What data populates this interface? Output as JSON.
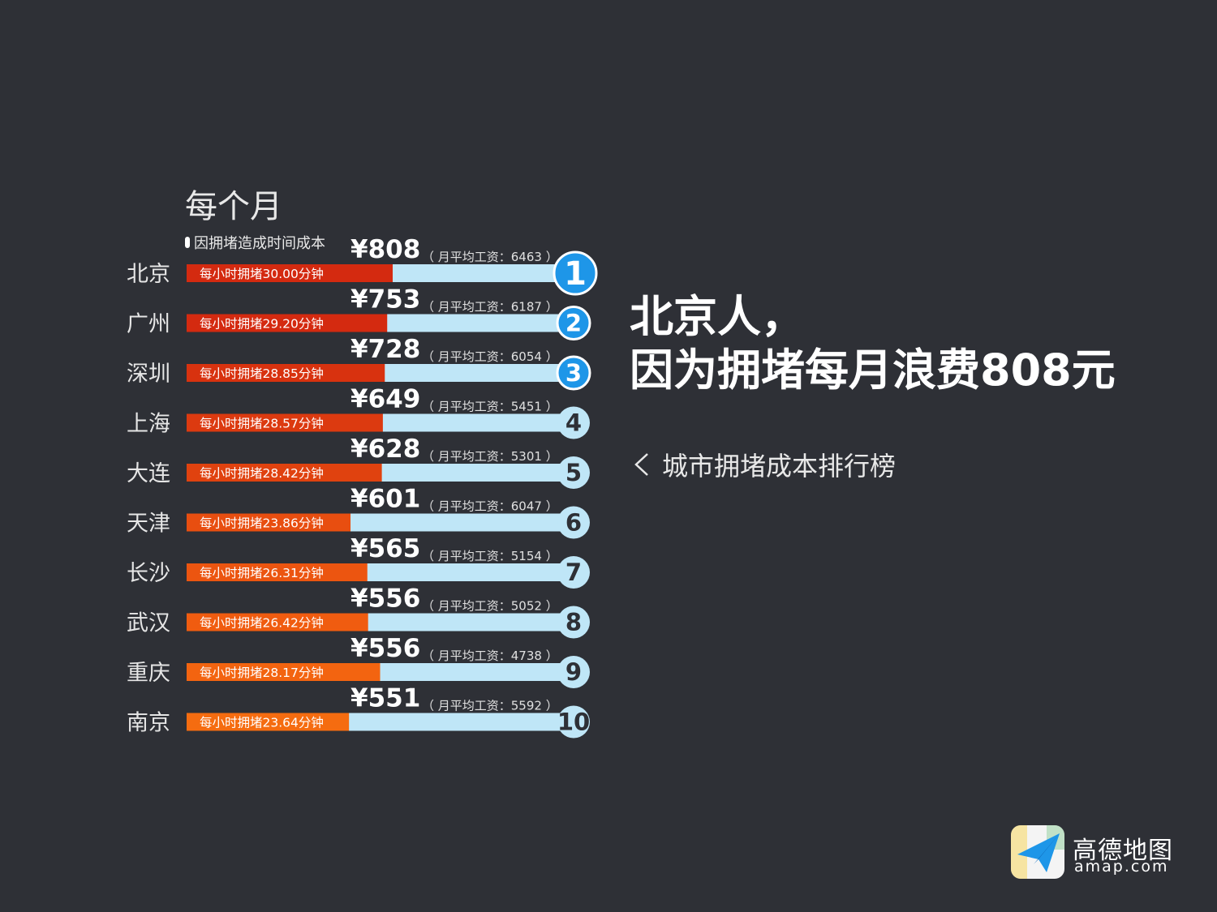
{
  "heading": "每个月",
  "legend_label": "因拥堵造成时间成本",
  "headline_line1": "北京人，",
  "headline_line2": "因为拥堵每月浪费808元",
  "subtitle": "城市拥堵成本排行榜",
  "brand": {
    "name": "高德地图",
    "url": "amap.com"
  },
  "colors": {
    "background": "#2e3036",
    "track": "#bfe6f7",
    "rank_top3": "#1e96e8",
    "rank_other": "#bfe6f7"
  },
  "chart_data": {
    "type": "bar",
    "categories": [
      "北京",
      "广州",
      "深圳",
      "上海",
      "大连",
      "天津",
      "长沙",
      "武汉",
      "重庆",
      "南京"
    ],
    "series": [
      {
        "name": "因拥堵造成时间成本",
        "values": [
          808,
          753,
          728,
          649,
          628,
          601,
          565,
          556,
          556,
          551
        ],
        "labels": [
          "¥808",
          "¥753",
          "¥728",
          "¥649",
          "¥628",
          "¥601",
          "¥565",
          "¥556",
          "¥556",
          "¥551"
        ]
      }
    ],
    "salary_labels": [
      "（ 月平均工资：6463 ）",
      "（ 月平均工资：6187 ）",
      "（ 月平均工资：6054 ）",
      "（ 月平均工资：5451 ）",
      "（ 月平均工资：5301 ）",
      "（ 月平均工资：6047 ）",
      "（ 月平均工资：5154 ）",
      "（ 月平均工资：5052 ）",
      "（ 月平均工资：4738 ）",
      "（ 月平均工资：5592 ）"
    ],
    "congestion_labels": [
      "每小时拥堵30.00分钟",
      "每小时拥堵29.20分钟",
      "每小时拥堵28.85分钟",
      "每小时拥堵28.57分钟",
      "每小时拥堵28.42分钟",
      "每小时拥堵23.86分钟",
      "每小时拥堵26.31分钟",
      "每小时拥堵26.42分钟",
      "每小时拥堵28.17分钟",
      "每小时拥堵23.64分钟"
    ],
    "ranks": [
      "1",
      "2",
      "3",
      "4",
      "5",
      "6",
      "7",
      "8",
      "9",
      "10"
    ],
    "bar_colors": [
      "#d42a10",
      "#d42a10",
      "#d8320f",
      "#dc3a10",
      "#e0420f",
      "#e84e10",
      "#ec5510",
      "#f05c10",
      "#f36410",
      "#f56c10"
    ]
  }
}
